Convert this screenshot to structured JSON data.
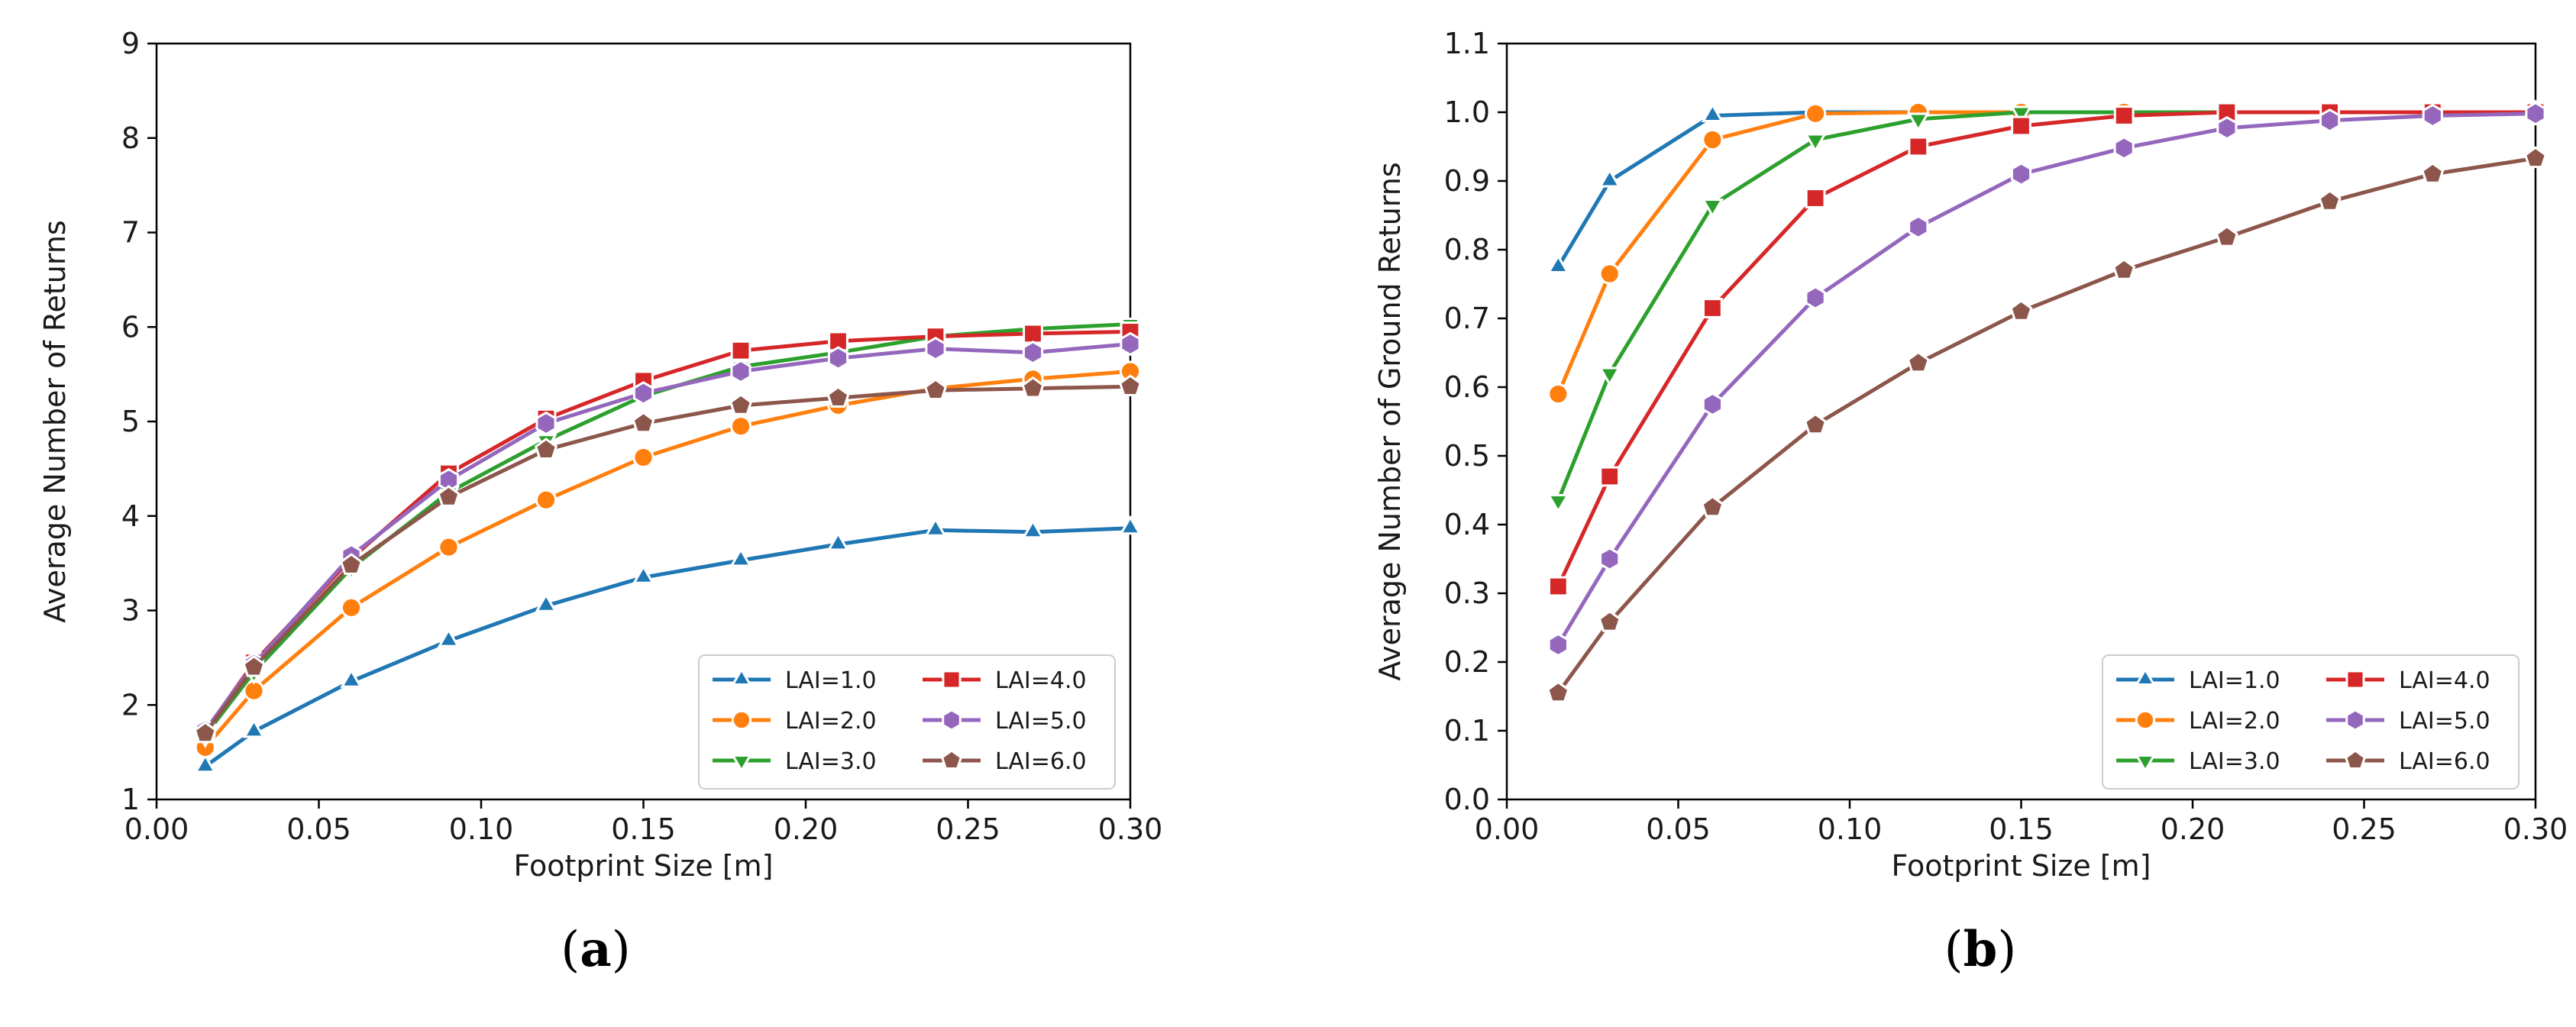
{
  "chart_data": [
    {
      "type": "line",
      "panel_label": "a",
      "title": "",
      "xlabel": "Footprint Size [m]",
      "ylabel": "Average Number of Returns",
      "xlim": [
        0.0,
        0.3
      ],
      "ylim": [
        1,
        9
      ],
      "xticks": [
        "0.00",
        "0.05",
        "0.10",
        "0.15",
        "0.20",
        "0.25",
        "0.30"
      ],
      "yticks": [
        "1",
        "2",
        "3",
        "4",
        "5",
        "6",
        "7",
        "8",
        "9"
      ],
      "grid": false,
      "legend_placement": "lower-right",
      "legend_columns": 2,
      "x": [
        0.015,
        0.03,
        0.06,
        0.09,
        0.12,
        0.15,
        0.18,
        0.21,
        0.24,
        0.27,
        0.3
      ],
      "series": [
        {
          "name": "LAI=1.0",
          "color": "#1f77b4",
          "marker": "triangle-up",
          "values": [
            1.35,
            1.72,
            2.25,
            2.68,
            3.05,
            3.35,
            3.53,
            3.7,
            3.85,
            3.83,
            3.87
          ]
        },
        {
          "name": "LAI=2.0",
          "color": "#ff7f0e",
          "marker": "circle",
          "values": [
            1.55,
            2.15,
            3.03,
            3.67,
            4.17,
            4.62,
            4.95,
            5.17,
            5.35,
            5.45,
            5.53
          ]
        },
        {
          "name": "LAI=3.0",
          "color": "#2ca02c",
          "marker": "triangle-down",
          "values": [
            1.68,
            2.35,
            3.45,
            4.25,
            4.8,
            5.27,
            5.58,
            5.73,
            5.9,
            5.98,
            6.03
          ]
        },
        {
          "name": "LAI=4.0",
          "color": "#d62728",
          "marker": "square",
          "values": [
            1.72,
            2.45,
            3.55,
            4.45,
            5.03,
            5.43,
            5.75,
            5.85,
            5.9,
            5.93,
            5.95
          ]
        },
        {
          "name": "LAI=5.0",
          "color": "#9467bd",
          "marker": "hexagon",
          "values": [
            1.73,
            2.43,
            3.58,
            4.38,
            4.98,
            5.3,
            5.53,
            5.67,
            5.77,
            5.73,
            5.82
          ]
        },
        {
          "name": "LAI=6.0",
          "color": "#8c564b",
          "marker": "pentagon",
          "values": [
            1.7,
            2.4,
            3.48,
            4.2,
            4.7,
            4.98,
            5.17,
            5.25,
            5.33,
            5.35,
            5.37
          ]
        }
      ]
    },
    {
      "type": "line",
      "panel_label": "b",
      "title": "",
      "xlabel": "Footprint Size [m]",
      "ylabel": "Average Number of Ground Returns",
      "xlim": [
        0.0,
        0.3
      ],
      "ylim": [
        0.0,
        1.1
      ],
      "xticks": [
        "0.00",
        "0.05",
        "0.10",
        "0.15",
        "0.20",
        "0.25",
        "0.30"
      ],
      "yticks": [
        "0.0",
        "0.1",
        "0.2",
        "0.3",
        "0.4",
        "0.5",
        "0.6",
        "0.7",
        "0.8",
        "0.9",
        "1.0",
        "1.1"
      ],
      "grid": false,
      "legend_placement": "lower-right",
      "legend_columns": 2,
      "x": [
        0.015,
        0.03,
        0.06,
        0.09,
        0.12,
        0.15,
        0.18,
        0.21,
        0.24,
        0.27,
        0.3
      ],
      "series": [
        {
          "name": "LAI=1.0",
          "color": "#1f77b4",
          "marker": "triangle-up",
          "values": [
            0.775,
            0.9,
            0.995,
            1.0,
            1.0,
            1.0,
            1.0,
            1.0,
            1.0,
            1.0,
            1.0
          ]
        },
        {
          "name": "LAI=2.0",
          "color": "#ff7f0e",
          "marker": "circle",
          "values": [
            0.59,
            0.765,
            0.96,
            0.998,
            1.0,
            1.0,
            1.0,
            1.0,
            1.0,
            1.0,
            1.0
          ]
        },
        {
          "name": "LAI=3.0",
          "color": "#2ca02c",
          "marker": "triangle-down",
          "values": [
            0.435,
            0.62,
            0.865,
            0.96,
            0.99,
            1.0,
            1.0,
            1.0,
            1.0,
            1.0,
            1.0
          ]
        },
        {
          "name": "LAI=4.0",
          "color": "#d62728",
          "marker": "square",
          "values": [
            0.31,
            0.47,
            0.715,
            0.875,
            0.95,
            0.98,
            0.995,
            1.0,
            1.0,
            1.0,
            1.0
          ]
        },
        {
          "name": "LAI=5.0",
          "color": "#9467bd",
          "marker": "hexagon",
          "values": [
            0.225,
            0.35,
            0.575,
            0.73,
            0.833,
            0.91,
            0.948,
            0.977,
            0.988,
            0.995,
            0.998
          ]
        },
        {
          "name": "LAI=6.0",
          "color": "#8c564b",
          "marker": "pentagon",
          "values": [
            0.155,
            0.258,
            0.425,
            0.545,
            0.635,
            0.71,
            0.77,
            0.818,
            0.87,
            0.91,
            0.933
          ]
        }
      ]
    }
  ]
}
